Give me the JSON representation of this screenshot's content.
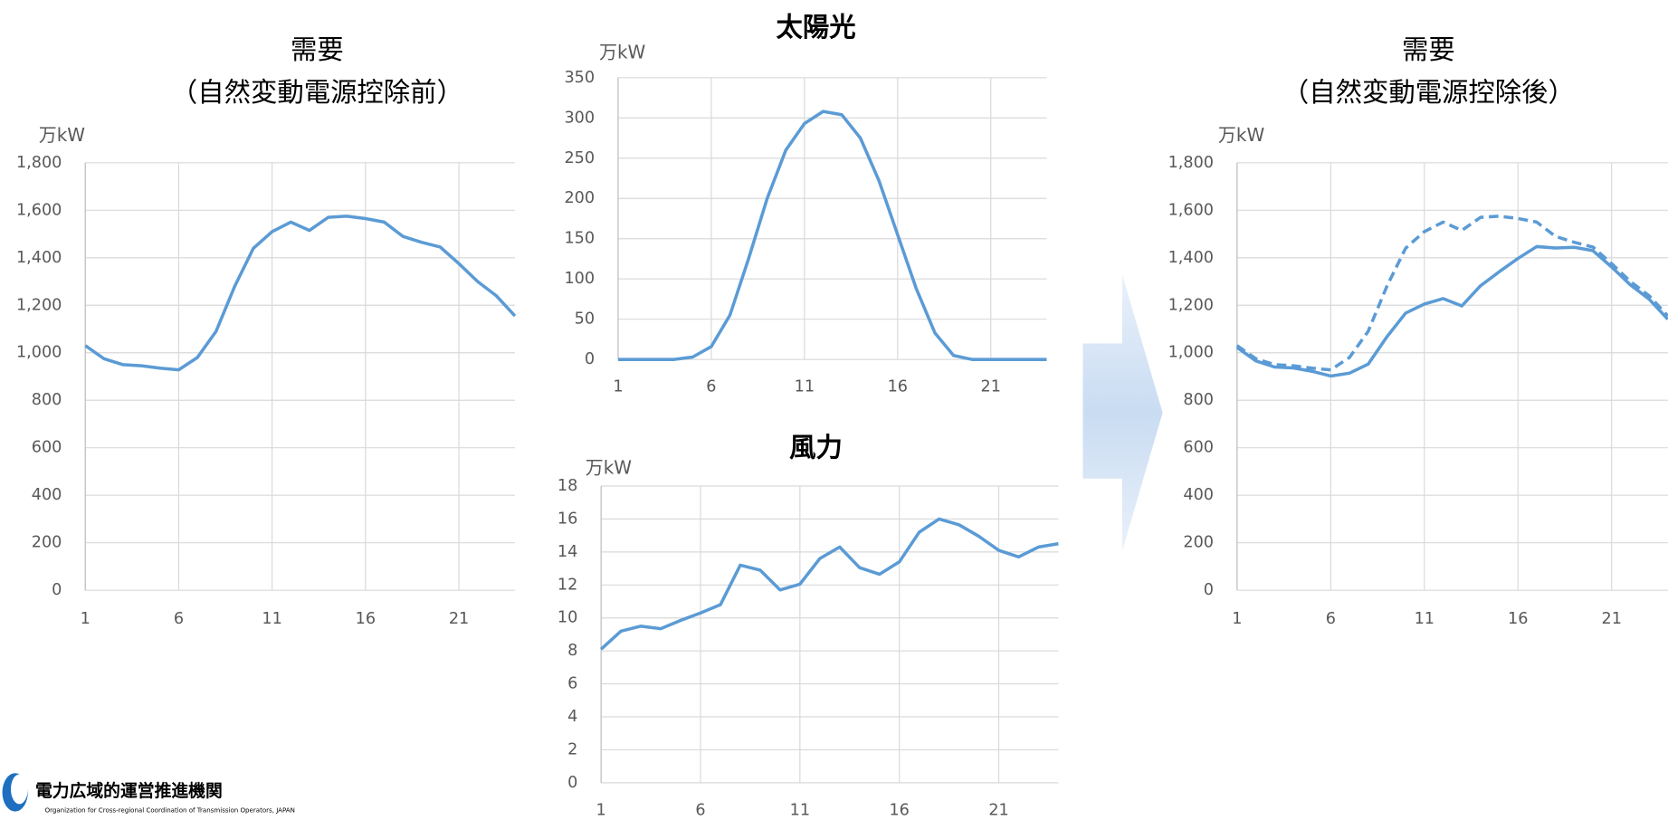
{
  "chart_data": [
    {
      "type": "line",
      "title": "需要",
      "subtitle": "（自然変動電源控除前）",
      "y_label": "万kW",
      "x": [
        1,
        2,
        3,
        4,
        5,
        6,
        7,
        8,
        9,
        10,
        11,
        12,
        13,
        14,
        15,
        16,
        17,
        18,
        19,
        20,
        21,
        22,
        23,
        24
      ],
      "values": [
        1030,
        975,
        950,
        945,
        935,
        928,
        980,
        1090,
        1280,
        1440,
        1510,
        1550,
        1515,
        1570,
        1575,
        1565,
        1550,
        1490,
        1465,
        1445,
        1375,
        1300,
        1240,
        1155
      ],
      "color": "#5b9bd5",
      "xlim": [
        1,
        24
      ],
      "xticks": [
        1,
        6,
        11,
        16,
        21
      ],
      "ylim": [
        0,
        1800
      ],
      "yticks": [
        0,
        200,
        400,
        600,
        800,
        {
          "value": 1000,
          "label": "1,000"
        },
        {
          "value": 1200,
          "label": "1,200"
        },
        {
          "value": 1400,
          "label": "1,400"
        },
        {
          "value": 1600,
          "label": "1,600"
        },
        {
          "value": 1800,
          "label": "1,800"
        }
      ],
      "grid": true
    },
    {
      "type": "line",
      "title": "太陽光",
      "y_label": "万kW",
      "x": [
        1,
        2,
        3,
        4,
        5,
        6,
        7,
        8,
        9,
        10,
        11,
        12,
        13,
        14,
        15,
        16,
        17,
        18,
        19,
        20,
        21,
        22,
        23,
        24
      ],
      "values": [
        0,
        0,
        0,
        0,
        3,
        16,
        55,
        125,
        200,
        260,
        293,
        308,
        304,
        275,
        222,
        155,
        88,
        33,
        5,
        0,
        0,
        0,
        0,
        0
      ],
      "color": "#5b9bd5",
      "xlim": [
        1,
        24
      ],
      "xticks": [
        1,
        6,
        11,
        16,
        21
      ],
      "ylim": [
        0,
        350
      ],
      "yticks": [
        0,
        50,
        100,
        150,
        200,
        250,
        300,
        350
      ],
      "grid": true
    },
    {
      "type": "line",
      "title": "風力",
      "y_label": "万kW",
      "x": [
        1,
        2,
        3,
        4,
        5,
        6,
        7,
        8,
        9,
        10,
        11,
        12,
        13,
        14,
        15,
        16,
        17,
        18,
        19,
        20,
        21,
        22,
        23,
        24
      ],
      "values": [
        8.1,
        9.2,
        9.5,
        9.35,
        9.85,
        10.3,
        10.8,
        13.2,
        12.9,
        11.7,
        12.05,
        13.6,
        14.3,
        13.05,
        12.65,
        13.4,
        15.2,
        16.0,
        15.65,
        14.95,
        14.1,
        13.7,
        14.3,
        14.5
      ],
      "color": "#5b9bd5",
      "xlim": [
        1,
        24
      ],
      "xticks": [
        1,
        6,
        11,
        16,
        21
      ],
      "ylim": [
        0,
        18
      ],
      "yticks": [
        0,
        2,
        4,
        6,
        8,
        10,
        12,
        14,
        16,
        18
      ],
      "grid": true
    },
    {
      "type": "line",
      "title": "需要",
      "subtitle": "（自然変動電源控除後）",
      "y_label": "万kW",
      "x": [
        1,
        2,
        3,
        4,
        5,
        6,
        7,
        8,
        9,
        10,
        11,
        12,
        13,
        14,
        15,
        16,
        17,
        18,
        19,
        20,
        21,
        22,
        23,
        24
      ],
      "series": [
        {
          "color": "#5b9bd5",
          "dash": true,
          "values": [
            1030,
            975,
            950,
            945,
            935,
            928,
            980,
            1090,
            1280,
            1440,
            1510,
            1550,
            1515,
            1570,
            1575,
            1565,
            1550,
            1490,
            1465,
            1445,
            1375,
            1300,
            1240,
            1155
          ]
        },
        {
          "color": "#5b9bd5",
          "dash": false,
          "values": [
            1022,
            966,
            940,
            936,
            922,
            902,
            914,
            952,
            1067,
            1167,
            1205,
            1228,
            1197,
            1282,
            1341,
            1397,
            1447,
            1441,
            1444,
            1430,
            1361,
            1286,
            1226,
            1141
          ]
        }
      ],
      "xlim": [
        1,
        24
      ],
      "xticks": [
        1,
        6,
        11,
        16,
        21
      ],
      "ylim": [
        0,
        1800
      ],
      "yticks": [
        0,
        200,
        400,
        600,
        800,
        {
          "value": 1000,
          "label": "1,000"
        },
        {
          "value": 1200,
          "label": "1,200"
        },
        {
          "value": 1400,
          "label": "1,400"
        },
        {
          "value": 1600,
          "label": "1,600"
        },
        {
          "value": 1800,
          "label": "1,800"
        }
      ],
      "grid": true
    }
  ],
  "logo": {
    "name": "電力広域的運営推進機関",
    "english": "Organization for Cross-regional Coordination of Transmission Operators, JAPAN"
  }
}
